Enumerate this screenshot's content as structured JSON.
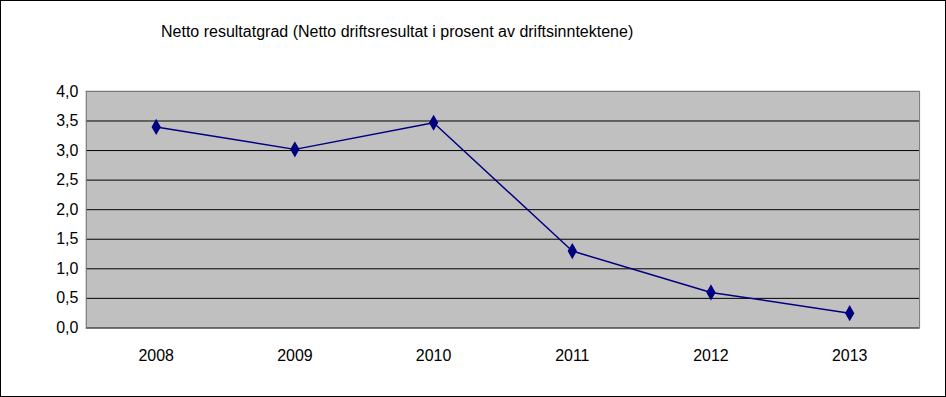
{
  "chart_data": {
    "type": "line",
    "title": "Netto resultatgrad (Netto driftsresultat i prosent av driftsinntektene)",
    "categories": [
      "2008",
      "2009",
      "2010",
      "2011",
      "2012",
      "2013"
    ],
    "values": [
      3.4,
      3.02,
      3.47,
      1.3,
      0.6,
      0.25
    ],
    "color": "#000080",
    "marker": "diamond",
    "line_style": "solid",
    "ylim": [
      0,
      4
    ],
    "yticks": [
      {
        "value": 0,
        "label": "0,0"
      },
      {
        "value": 0.5,
        "label": "0,5"
      },
      {
        "value": 1,
        "label": "1,0"
      },
      {
        "value": 1.5,
        "label": "1,5"
      },
      {
        "value": 2,
        "label": "2,0"
      },
      {
        "value": 2.5,
        "label": "2,5"
      },
      {
        "value": 3,
        "label": "3,0"
      },
      {
        "value": 3.5,
        "label": "3,5"
      },
      {
        "value": 4,
        "label": "4,0"
      }
    ],
    "grid": true
  }
}
